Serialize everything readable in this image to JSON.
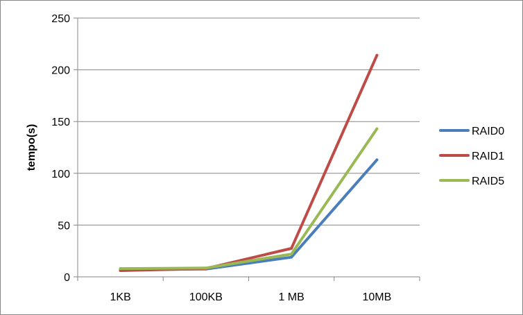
{
  "chart_data": {
    "type": "line",
    "title": "",
    "xlabel": "",
    "ylabel": "tempo(s)",
    "categories": [
      "1KB",
      "100KB",
      "1 MB",
      "10MB"
    ],
    "ylim": [
      0,
      250
    ],
    "yticks": [
      0,
      50,
      100,
      150,
      200,
      250
    ],
    "grid": "horizontal",
    "legend_position": "right",
    "series": [
      {
        "name": "RAID0",
        "color": "#4a7ebb",
        "values": [
          7,
          7.5,
          19,
          113
        ]
      },
      {
        "name": "RAID1",
        "color": "#be4b48",
        "values": [
          6,
          8,
          27.5,
          214
        ]
      },
      {
        "name": "RAID5",
        "color": "#98b954",
        "values": [
          8,
          8.5,
          22,
          143
        ]
      }
    ]
  }
}
